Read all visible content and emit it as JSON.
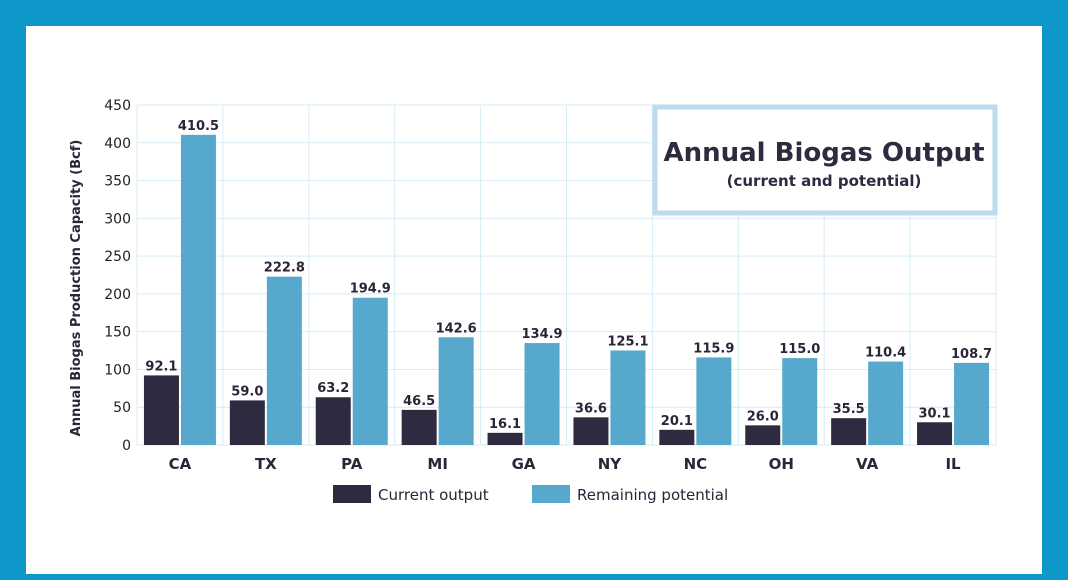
{
  "chart_data": {
    "type": "bar",
    "title": "Annual Biogas Output",
    "subtitle": "(current and potential)",
    "xlabel": "",
    "ylabel": "Annual Biogas Production Capacity (Bcf)",
    "ylim": [
      0,
      450
    ],
    "yticks": [
      0,
      50,
      100,
      150,
      200,
      250,
      300,
      350,
      400,
      450
    ],
    "grid": true,
    "legend_position": "bottom",
    "categories": [
      "CA",
      "TX",
      "PA",
      "MI",
      "GA",
      "NY",
      "NC",
      "OH",
      "VA",
      "IL"
    ],
    "series": [
      {
        "name": "Current output",
        "color": "#2e2a3f",
        "values": [
          92.1,
          59.0,
          63.2,
          46.5,
          16.1,
          36.6,
          20.1,
          26.0,
          35.5,
          30.1
        ],
        "labels": [
          "92.1",
          "59.0",
          "63.2",
          "46.5",
          "16.1",
          "36.6",
          "20.1",
          "26.0",
          "35.5",
          "30.1"
        ]
      },
      {
        "name": "Remaining potential",
        "color": "#56a8cc",
        "values": [
          410.5,
          222.8,
          194.9,
          142.6,
          134.9,
          125.1,
          115.9,
          115.0,
          110.4,
          108.7
        ],
        "labels": [
          "410.5",
          "222.8",
          "194.9",
          "142.6",
          "134.9",
          "125.1",
          "115.9",
          "115.0",
          "110.4",
          "108.7"
        ]
      }
    ]
  },
  "colors": {
    "frame": "#0e97c9",
    "title_box_border": "#bcdcef",
    "grid": "#d6ecf6"
  }
}
